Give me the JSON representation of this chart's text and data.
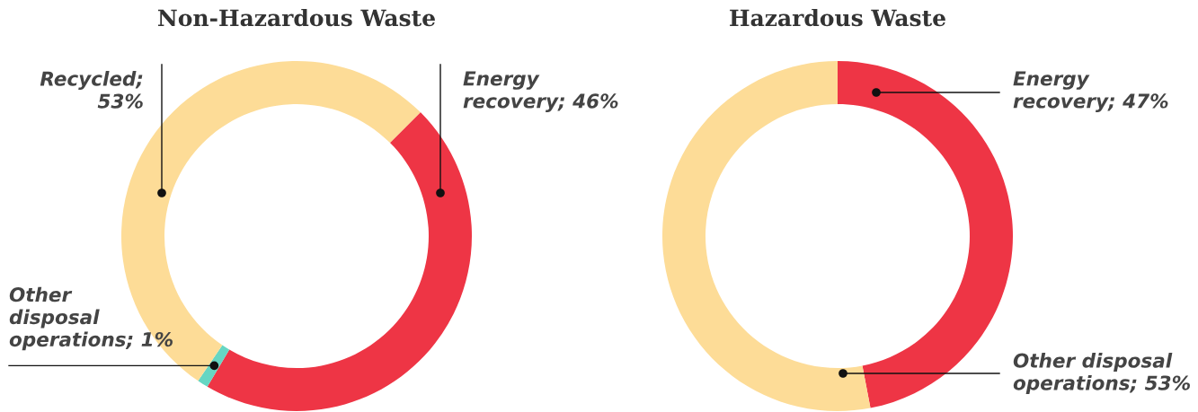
{
  "chart_data": [
    {
      "type": "donut",
      "title": "Non-Hazardous Waste",
      "categories": [
        "Recycled;\n53%",
        "Energy\nrecovery; 46%",
        "Other\ndisposal\noperations; 1%"
      ],
      "values": [
        53,
        46,
        1
      ],
      "colors": [
        "#fddc97",
        "#ee3545",
        "#66d6c3"
      ],
      "legend": false
    },
    {
      "type": "donut",
      "title": "Hazardous Waste",
      "categories": [
        "Energy\nrecovery; 47%",
        "Other disposal\noperations; 53%"
      ],
      "values": [
        47,
        53
      ],
      "colors": [
        "#ee3545",
        "#fddc97"
      ],
      "legend": false
    }
  ]
}
